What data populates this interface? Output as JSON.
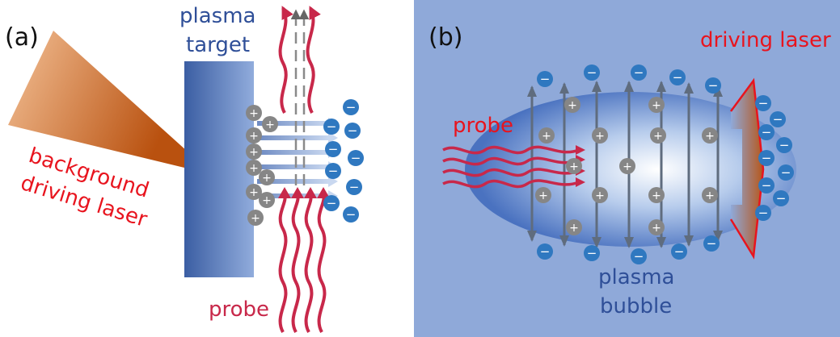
{
  "panel_a": {
    "label": "(a)",
    "target_label_line1": "plasma",
    "target_label_line2": "target",
    "laser_label_line1": "background",
    "laser_label_line2": "driving laser",
    "probe_label": "probe"
  },
  "panel_b": {
    "label": "(b)",
    "driving_laser_label": "driving laser",
    "probe_label": "probe",
    "bubble_label_line1": "plasma",
    "bubble_label_line2": "bubble"
  },
  "symbols": {
    "electron": "−",
    "ion": "+"
  },
  "colors": {
    "panel_b_bg": "#8fa9d9",
    "target_blue": "#3f63a8",
    "laser_orange": "#c8621a",
    "probe_red": "#c8284a",
    "label_red": "#e8141e",
    "label_blue": "#2f4f98",
    "electron_blue": "#2f78c0",
    "ion_gray": "#868686"
  }
}
